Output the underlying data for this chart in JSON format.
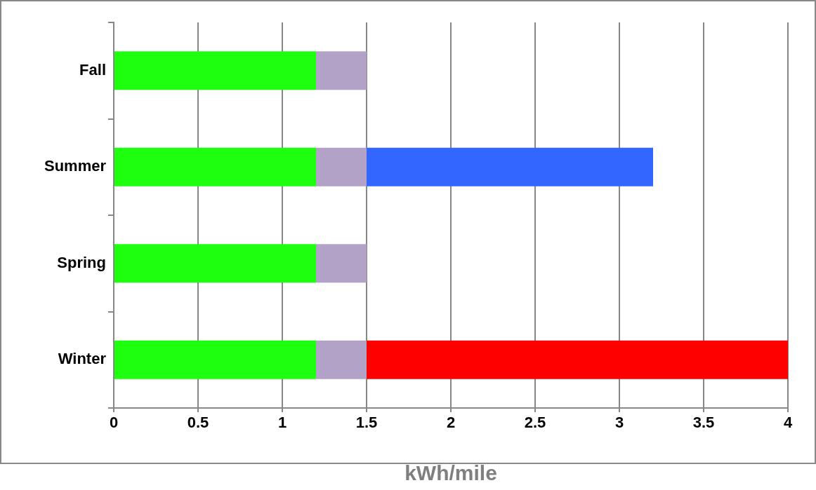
{
  "chart_data": {
    "type": "bar",
    "orientation": "horizontal",
    "stacked": true,
    "categories": [
      "Fall",
      "Summer",
      "Spring",
      "Winter"
    ],
    "series": [
      {
        "color": "#1eff0f",
        "values": [
          1.2,
          1.2,
          1.2,
          1.2
        ]
      },
      {
        "color": "#b2a2c8",
        "values": [
          0.3,
          0.3,
          0.3,
          0.3
        ]
      },
      {
        "color": "#3366ff",
        "values": [
          null,
          1.7,
          null,
          null
        ]
      },
      {
        "color": "#ff0000",
        "values": [
          null,
          null,
          null,
          2.5
        ]
      }
    ],
    "xlabel": "kWh/mile",
    "xlim": [
      0,
      4
    ],
    "xticks": [
      0,
      0.5,
      1,
      1.5,
      2,
      2.5,
      3,
      3.5,
      4
    ],
    "grid": "x",
    "legend": false
  }
}
